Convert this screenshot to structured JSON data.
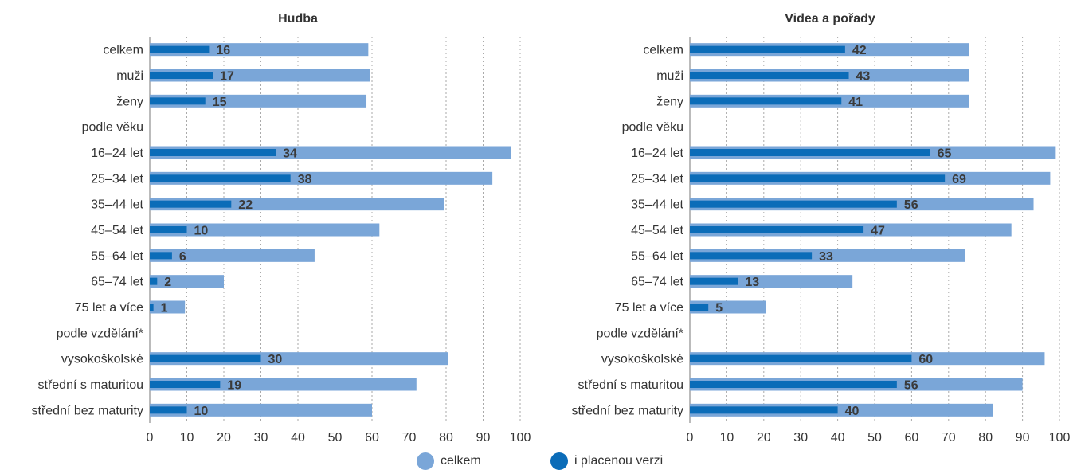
{
  "legend": {
    "total_label": "celkem",
    "paid_label": "i placenou verzi"
  },
  "colors": {
    "total": "#7aa6d8",
    "paid": "#0b6cb8",
    "grid": "#aaaaaa",
    "axis": "#777777",
    "text": "#333333",
    "value_text": "#3a3a3a"
  },
  "chart_data": [
    {
      "type": "bar",
      "orientation": "horizontal",
      "title": "Hudba",
      "categories": [
        "celkem",
        "muži",
        "ženy",
        "podle věku",
        "16–24 let",
        "25–34 let",
        "35–44 let",
        "45–54 let",
        "55–64 let",
        "65–74 let",
        "75 let a více",
        "podle vzdělání*",
        "vysokoškolské",
        "střední s maturitou",
        "střední bez maturity"
      ],
      "series": [
        {
          "name": "celkem",
          "values": [
            59,
            59.5,
            58.5,
            null,
            97.5,
            92.5,
            79.5,
            62,
            44.5,
            20,
            9.5,
            null,
            80.5,
            72,
            60
          ]
        },
        {
          "name": "i placenou verzi",
          "values": [
            16,
            17,
            15,
            null,
            34,
            38,
            22,
            10,
            6,
            2,
            1,
            null,
            30,
            19,
            10
          ]
        }
      ],
      "xlim": [
        0,
        100
      ],
      "xticks": [
        0,
        10,
        20,
        30,
        40,
        50,
        60,
        70,
        80,
        90,
        100
      ],
      "grid": true
    },
    {
      "type": "bar",
      "orientation": "horizontal",
      "title": "Videa a pořady",
      "categories": [
        "celkem",
        "muži",
        "ženy",
        "podle věku",
        "16–24 let",
        "25–34 let",
        "35–44 let",
        "45–54 let",
        "55–64 let",
        "65–74 let",
        "75 let a více",
        "podle vzdělání*",
        "vysokoškolské",
        "střední s maturitou",
        "střední bez maturity"
      ],
      "series": [
        {
          "name": "celkem",
          "values": [
            75.5,
            75.5,
            75.5,
            null,
            99,
            97.5,
            93,
            87,
            74.5,
            44,
            20.5,
            null,
            96,
            90,
            82
          ]
        },
        {
          "name": "i placenou verzi",
          "values": [
            42,
            43,
            41,
            null,
            65,
            69,
            56,
            47,
            33,
            13,
            5,
            null,
            60,
            56,
            40
          ]
        }
      ],
      "xlim": [
        0,
        100
      ],
      "xticks": [
        0,
        10,
        20,
        30,
        40,
        50,
        60,
        70,
        80,
        90,
        100
      ],
      "grid": true
    }
  ]
}
